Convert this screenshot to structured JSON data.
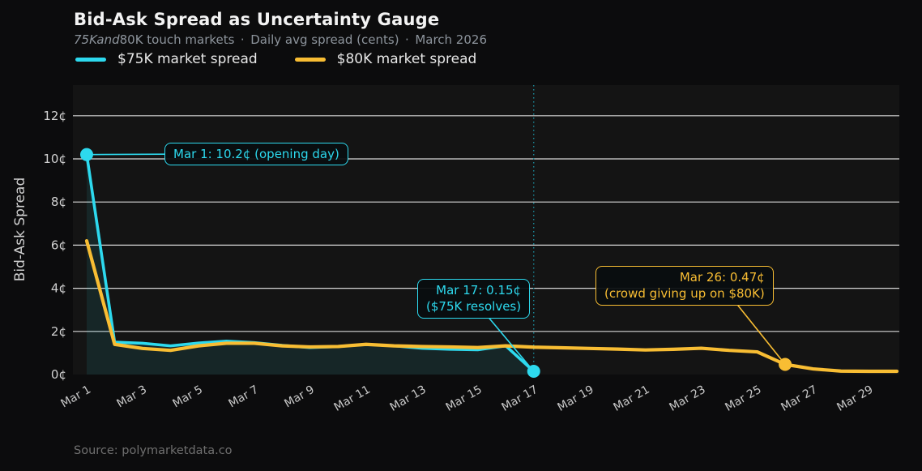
{
  "header": {
    "title": "Bid-Ask Spread as Uncertainty Gauge",
    "subtitle_italic": "75Kand",
    "subtitle_rest": "80K touch markets · Daily avg spread (cents) · March 2026"
  },
  "legend": {
    "items": [
      {
        "label": "$75K market spread",
        "color": "#2dd9ee"
      },
      {
        "label": "$80K market spread",
        "color": "#f8bd33"
      }
    ]
  },
  "chart_data": {
    "type": "line",
    "title": "Bid-Ask Spread as Uncertainty Gauge",
    "ylabel": "Bid-Ask Spread",
    "x_unit": "date (March 2026)",
    "x_tick_days": [
      1,
      3,
      5,
      7,
      9,
      11,
      13,
      15,
      17,
      19,
      21,
      23,
      25,
      27,
      29
    ],
    "x_tick_labels": [
      "Mar 1",
      "Mar 3",
      "Mar 5",
      "Mar 7",
      "Mar 9",
      "Mar 11",
      "Mar 13",
      "Mar 15",
      "Mar 17",
      "Mar 19",
      "Mar 21",
      "Mar 23",
      "Mar 25",
      "Mar 27",
      "Mar 29"
    ],
    "y_ticks": [
      {
        "value": 0,
        "label": "0¢"
      },
      {
        "value": 2,
        "label": "2¢"
      },
      {
        "value": 4,
        "label": "4¢"
      },
      {
        "value": 6,
        "label": "6¢"
      },
      {
        "value": 8,
        "label": "8¢"
      },
      {
        "value": 10,
        "label": "10¢"
      },
      {
        "value": 12,
        "label": "12¢"
      }
    ],
    "ylim": [
      0,
      13.4
    ],
    "xlim_days": [
      1,
      30
    ],
    "grid": "horizontal",
    "resolve_vline_day": 17,
    "series": [
      {
        "name": "$75K market spread",
        "color": "#2dd9ee",
        "start_day": 1,
        "area_fill": true,
        "values": [
          10.2,
          1.5,
          1.45,
          1.33,
          1.46,
          1.55,
          1.48,
          1.35,
          1.25,
          1.3,
          1.4,
          1.33,
          1.22,
          1.17,
          1.15,
          1.33,
          0.15
        ]
      },
      {
        "name": "$80K market spread",
        "color": "#f8bd33",
        "start_day": 1,
        "area_fill": false,
        "values": [
          6.2,
          1.4,
          1.21,
          1.12,
          1.33,
          1.45,
          1.45,
          1.33,
          1.28,
          1.3,
          1.4,
          1.33,
          1.3,
          1.28,
          1.25,
          1.33,
          1.27,
          1.24,
          1.21,
          1.18,
          1.14,
          1.17,
          1.22,
          1.12,
          1.05,
          0.47,
          0.26,
          0.16,
          0.15,
          0.15
        ]
      }
    ],
    "annotations": [
      {
        "line1": "Mar 1: 10.2¢  (opening day)",
        "line2": "",
        "point_day": 1,
        "point_value": 10.2,
        "color": "#2dd9ee"
      },
      {
        "line1": "Mar 17: 0.15¢",
        "line2": "($75K resolves)",
        "point_day": 17,
        "point_value": 0.15,
        "color": "#2dd9ee"
      },
      {
        "line1": "Mar 26: 0.47¢",
        "line2": "(crowd giving up on $80K)",
        "point_day": 26,
        "point_value": 0.47,
        "color": "#f8bd33"
      }
    ],
    "layout_hints": {
      "background": "#0c0c0d",
      "plot_background": "#141414",
      "grid_color": "#f2f2f2",
      "vline_color": "#1b8a9a",
      "area_fill_color": "rgba(45,217,238,0.09)",
      "legend_position": "top-left"
    }
  },
  "footer": {
    "source": "Source: polymarketdata.co"
  }
}
